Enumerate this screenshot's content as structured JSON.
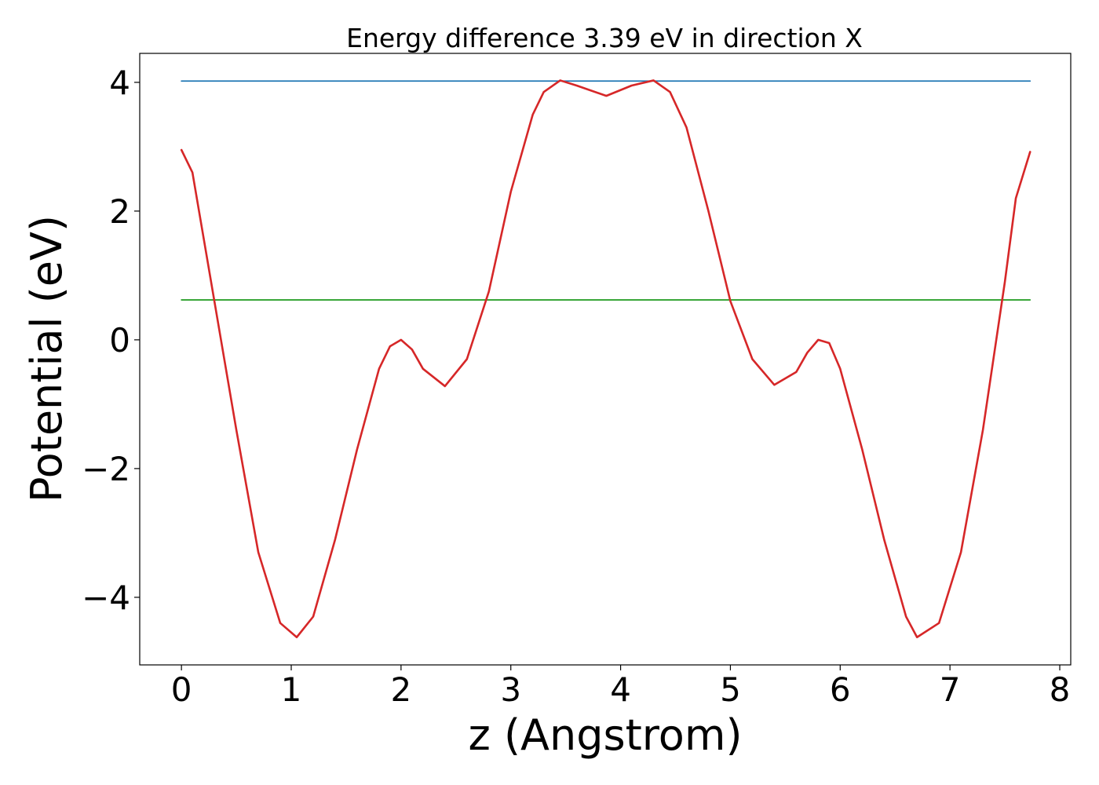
{
  "chart_data": {
    "type": "line",
    "title": "Energy difference 3.39 eV in direction X",
    "xlabel": "z (Angstrom)",
    "ylabel": "Potential (eV)",
    "xlim": [
      -0.38,
      8.1
    ],
    "ylim": [
      -5.05,
      4.45
    ],
    "xticks": [
      0,
      1,
      2,
      3,
      4,
      5,
      6,
      7,
      8
    ],
    "xtick_labels": [
      "0",
      "1",
      "2",
      "3",
      "4",
      "5",
      "6",
      "7",
      "8"
    ],
    "yticks": [
      -4,
      -2,
      0,
      2,
      4
    ],
    "ytick_labels": [
      "−4",
      "−2",
      "0",
      "2",
      "4"
    ],
    "grid": false,
    "legend": "none",
    "series": [
      {
        "color": "#1f77b4",
        "x": [
          0,
          7.73
        ],
        "y": [
          4.02,
          4.02
        ]
      },
      {
        "color": "#2ca02c",
        "x": [
          0,
          7.73
        ],
        "y": [
          0.62,
          0.62
        ]
      },
      {
        "color": "#d62728",
        "x": [
          0,
          0.1,
          0.2,
          0.35,
          0.5,
          0.7,
          0.9,
          1.05,
          1.2,
          1.4,
          1.6,
          1.8,
          1.9,
          2.0,
          2.1,
          2.2,
          2.4,
          2.6,
          2.8,
          3.0,
          3.2,
          3.3,
          3.45,
          3.6,
          3.87,
          4.1,
          4.3,
          4.45,
          4.6,
          4.8,
          5.0,
          5.2,
          5.4,
          5.6,
          5.7,
          5.8,
          5.9,
          6.0,
          6.2,
          6.4,
          6.6,
          6.7,
          6.9,
          7.1,
          7.3,
          7.5,
          7.6,
          7.73
        ],
        "y": [
          2.95,
          2.6,
          1.6,
          0.1,
          -1.4,
          -3.3,
          -4.4,
          -4.62,
          -4.3,
          -3.1,
          -1.7,
          -0.45,
          -0.1,
          0.0,
          -0.15,
          -0.45,
          -0.72,
          -0.3,
          0.75,
          2.3,
          3.5,
          3.85,
          4.03,
          3.95,
          3.79,
          3.95,
          4.03,
          3.85,
          3.3,
          2.0,
          0.6,
          -0.3,
          -0.7,
          -0.5,
          -0.2,
          0.0,
          -0.05,
          -0.45,
          -1.7,
          -3.1,
          -4.3,
          -4.62,
          -4.4,
          -3.3,
          -1.4,
          0.9,
          2.2,
          2.92
        ]
      }
    ]
  }
}
